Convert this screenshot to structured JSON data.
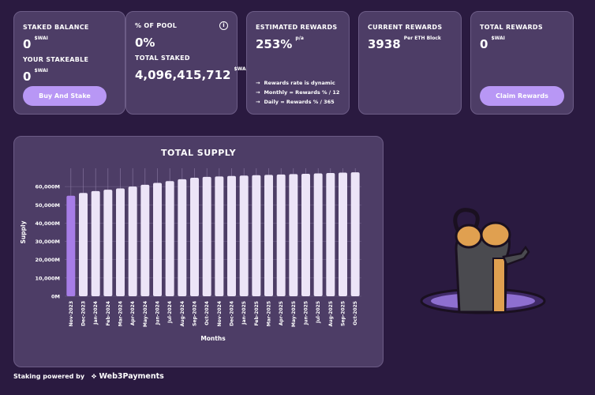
{
  "cards": {
    "staked": {
      "label": "STAKED BALANCE",
      "value": "0",
      "unit": "$WAI",
      "label2": "YOUR STAKEABLE",
      "value2": "0",
      "unit2": "$WAI",
      "button": "Buy And Stake"
    },
    "pool": {
      "label": "% OF POOL",
      "value": "0%",
      "info": "i",
      "label2": "TOTAL STAKED",
      "value2": "4,096,415,712",
      "unit2": "$WAI"
    },
    "est": {
      "label": "ESTIMATED REWARDS",
      "value": "253%",
      "unit": "p/a",
      "notes": [
        "Rewards rate is dynamic",
        "Monthly = Rewards % / 12",
        "Daily = Rewards % / 365"
      ]
    },
    "current": {
      "label": "CURRENT REWARDS",
      "value": "3938",
      "unit": "Per ETH Block"
    },
    "total": {
      "label": "TOTAL REWARDS",
      "value": "0",
      "unit": "$WAI",
      "button": "Claim Rewards"
    }
  },
  "footer": {
    "text": "Staking powered by",
    "brand": "Web3Payments"
  },
  "colors": {
    "background": "#2a1a40",
    "card": "#4d3d66",
    "button": "#b897f5",
    "highlight_bar": "#a77de8",
    "bar": "#ece4f7"
  },
  "chart_data": {
    "type": "bar",
    "title": "TOTAL SUPPLY",
    "xlabel": "Months",
    "ylabel": "Supply",
    "ylim": [
      0,
      70000000
    ],
    "yticks": [
      0,
      10000000,
      20000000,
      30000000,
      40000000,
      50000000,
      60000000
    ],
    "ytick_labels": [
      "0M",
      "10,000M",
      "20,000M",
      "30,000M",
      "40,000M",
      "50,000M",
      "60,000M"
    ],
    "categories": [
      "Nov-2023",
      "Dec-2023",
      "Jan-2024",
      "Feb-2024",
      "Mar-2024",
      "Apr-2024",
      "May-2024",
      "Jun-2024",
      "Jul-2024",
      "Aug-2024",
      "Sep-2024",
      "Oct-2024",
      "Nov-2024",
      "Dec-2024",
      "Jan-2025",
      "Feb-2025",
      "Mar-2025",
      "Apr-2025",
      "May-2025",
      "Jun-2025",
      "Jul-2025",
      "Aug-2025",
      "Sep-2025",
      "Oct-2025"
    ],
    "values": [
      55000000,
      56500000,
      57500000,
      58300000,
      59000000,
      60000000,
      61000000,
      62000000,
      63000000,
      64000000,
      64800000,
      65300000,
      65500000,
      65800000,
      66000000,
      66200000,
      66400000,
      66600000,
      66800000,
      67000000,
      67200000,
      67400000,
      67600000,
      67800000
    ],
    "highlight_index": 0
  }
}
